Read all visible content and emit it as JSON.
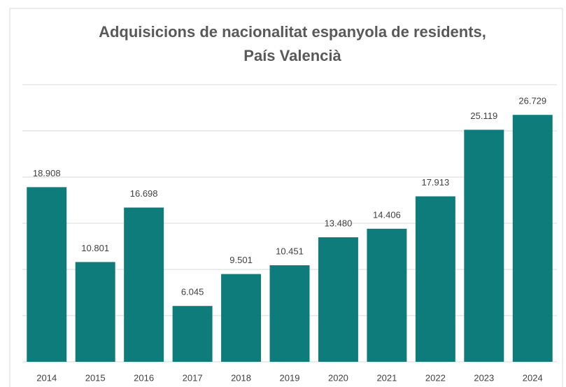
{
  "chart_data": {
    "type": "bar",
    "title": [
      "Adquisicions de nacionalitat espanyola de residents,",
      "País Valencià"
    ],
    "categories": [
      "2014",
      "2015",
      "2016",
      "2017",
      "2018",
      "2019",
      "2020",
      "2021",
      "2022",
      "2023",
      "2024"
    ],
    "values": [
      18908,
      10801,
      16698,
      6045,
      9501,
      10451,
      13480,
      14406,
      17913,
      25119,
      26729
    ],
    "value_labels": [
      "18.908",
      "10.801",
      "16.698",
      "6.045",
      "9.501",
      "10.451",
      "13.480",
      "14.406",
      "17.913",
      "25.119",
      "26.729"
    ],
    "color": "#0e7c7b",
    "ylim": [
      0,
      30000
    ],
    "yticks": [
      0,
      5000,
      10000,
      15000,
      20000,
      25000,
      30000
    ],
    "grid": true
  }
}
